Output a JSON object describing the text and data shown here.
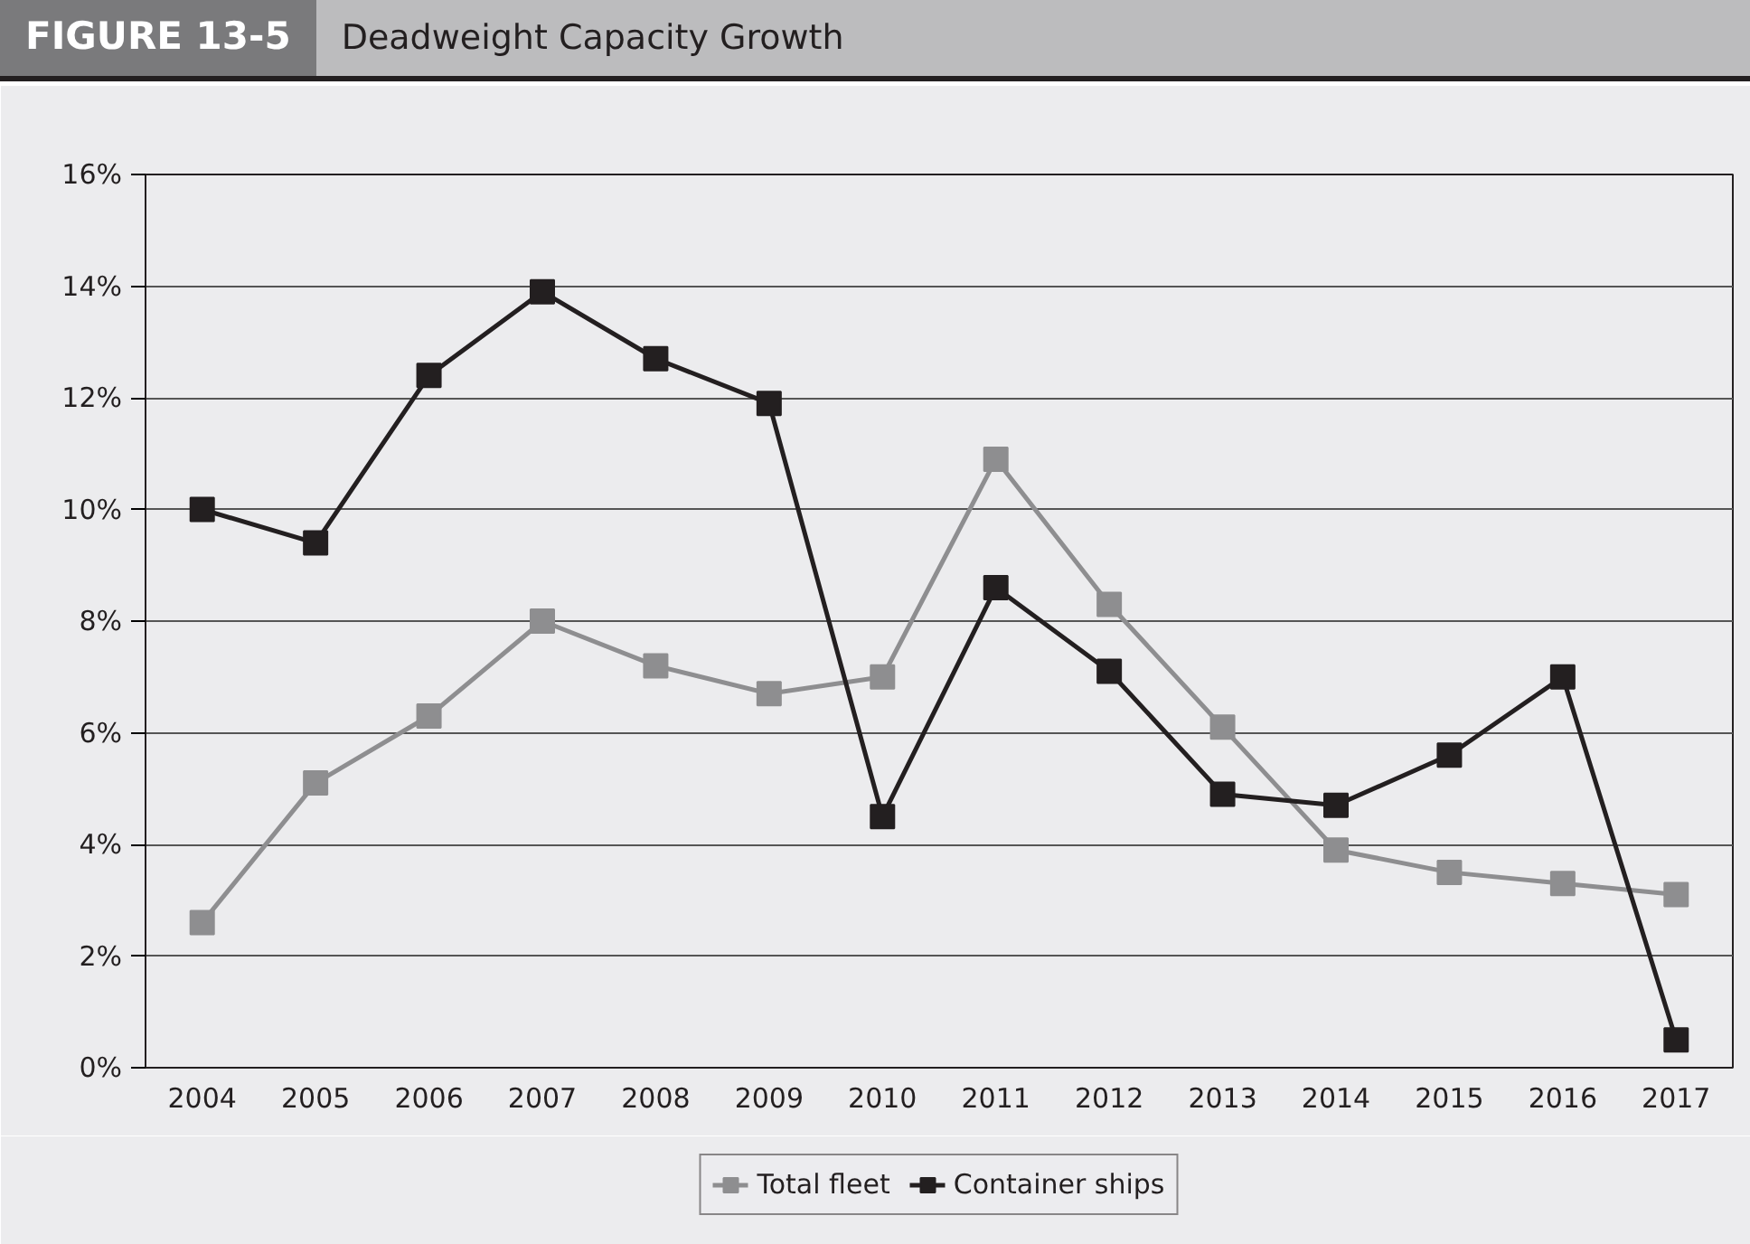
{
  "chart_data": {
    "type": "line",
    "title": "Deadweight Capacity Growth",
    "annotations": [
      "FIGURE 13-5"
    ],
    "categories": [
      "2004",
      "2005",
      "2006",
      "2007",
      "2008",
      "2009",
      "2010",
      "2011",
      "2012",
      "2013",
      "2014",
      "2015",
      "2016",
      "2017"
    ],
    "series": [
      {
        "name": "Total fleet",
        "color": "#8e8e90",
        "values": [
          2.6,
          5.1,
          6.3,
          8.0,
          7.2,
          6.7,
          7.0,
          10.9,
          8.3,
          6.1,
          3.9,
          3.5,
          3.3,
          3.1
        ]
      },
      {
        "name": "Container ships",
        "color": "#231f20",
        "values": [
          10.0,
          9.4,
          12.4,
          13.9,
          12.7,
          11.9,
          4.5,
          8.6,
          7.1,
          4.9,
          4.7,
          5.6,
          7.0,
          0.5
        ]
      }
    ],
    "ylim": [
      0,
      16
    ],
    "yticks": [
      {
        "value": 0,
        "label": "0%"
      },
      {
        "value": 2,
        "label": "2%"
      },
      {
        "value": 4,
        "label": "4%"
      },
      {
        "value": 6,
        "label": "6%"
      },
      {
        "value": 8,
        "label": "8%"
      },
      {
        "value": 10,
        "label": "10%"
      },
      {
        "value": 12,
        "label": "12%"
      },
      {
        "value": 14,
        "label": "14%"
      },
      {
        "value": 16,
        "label": "16%"
      }
    ],
    "grid": "y",
    "legend": "bottom",
    "marker": "square",
    "line_style": "solid"
  }
}
